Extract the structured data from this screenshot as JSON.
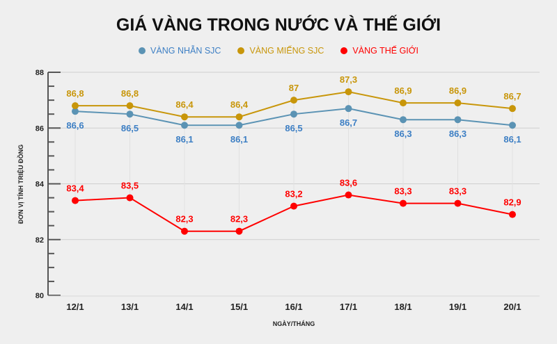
{
  "chart_data": {
    "type": "line",
    "title": "GIÁ VÀNG TRONG NƯỚC VÀ THẾ GIỚI",
    "xlabel": "NGÀY/THÁNG",
    "ylabel": "ĐƠN VỊ TÍNH TRIỆU ĐỒNG",
    "categories": [
      "12/1",
      "13/1",
      "14/1",
      "15/1",
      "16/1",
      "17/1",
      "18/1",
      "19/1",
      "20/1"
    ],
    "ylim": [
      80,
      88
    ],
    "yticks": [
      "80",
      "82",
      "84",
      "86",
      "88"
    ],
    "grid": true,
    "legend_position": "top-center",
    "series": [
      {
        "name": "VÀNG NHẪN SJC",
        "color": "#5b93b4",
        "label_color": "#3d7fc4",
        "values": [
          86.6,
          86.5,
          86.1,
          86.1,
          86.5,
          86.7,
          86.3,
          86.3,
          86.1
        ],
        "labels": [
          "86,6",
          "86,5",
          "86,1",
          "86,1",
          "86,5",
          "86,7",
          "86,3",
          "86,3",
          "86,1"
        ],
        "label_pos": "below"
      },
      {
        "name": "VÀNG MIẾNG SJC",
        "color": "#c8960a",
        "label_color": "#c8960a",
        "values": [
          86.8,
          86.8,
          86.4,
          86.4,
          87,
          87.3,
          86.9,
          86.9,
          86.7
        ],
        "labels": [
          "86,8",
          "86,8",
          "86,4",
          "86,4",
          "87",
          "87,3",
          "86,9",
          "86,9",
          "86,7"
        ],
        "label_pos": "above"
      },
      {
        "name": "VÀNG THẾ GIỚI",
        "color": "#ff0000",
        "label_color": "#ff0000",
        "values": [
          83.4,
          83.5,
          82.3,
          82.3,
          83.2,
          83.6,
          83.3,
          83.3,
          82.9
        ],
        "labels": [
          "83,4",
          "83,5",
          "82,3",
          "82,3",
          "83,2",
          "83,6",
          "83,3",
          "83,3",
          "82,9"
        ],
        "label_pos": "above"
      }
    ]
  }
}
